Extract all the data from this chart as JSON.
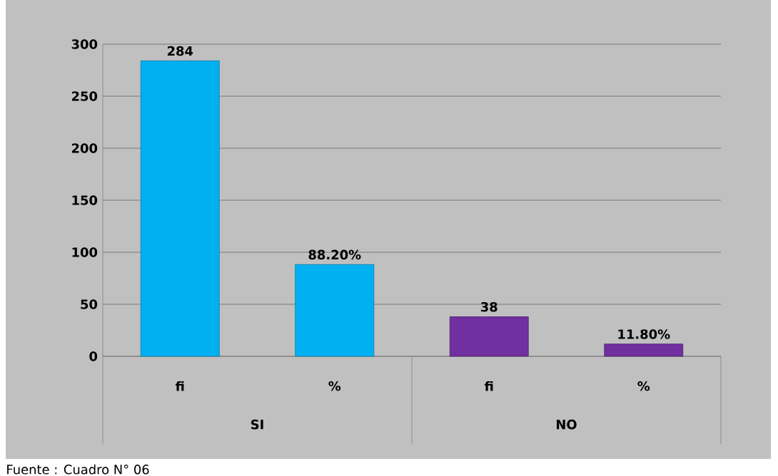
{
  "chart_data": {
    "type": "bar",
    "categories": [
      "fi",
      "%",
      "fi",
      "%"
    ],
    "values": [
      284,
      88.2,
      38,
      11.8
    ],
    "colors": [
      "#00b0f0",
      "#00b0f0",
      "#7030a0",
      "#7030a0"
    ],
    "value_labels": [
      "284",
      "88.20%",
      "38",
      "11.80%"
    ],
    "ylim": [
      0,
      300
    ],
    "yticks": [
      0,
      50,
      100,
      150,
      200,
      250,
      300
    ],
    "grid": "y",
    "annotations": [
      "SI",
      "NO",
      "Fuente     :   Cuadro N° 06"
    ]
  }
}
